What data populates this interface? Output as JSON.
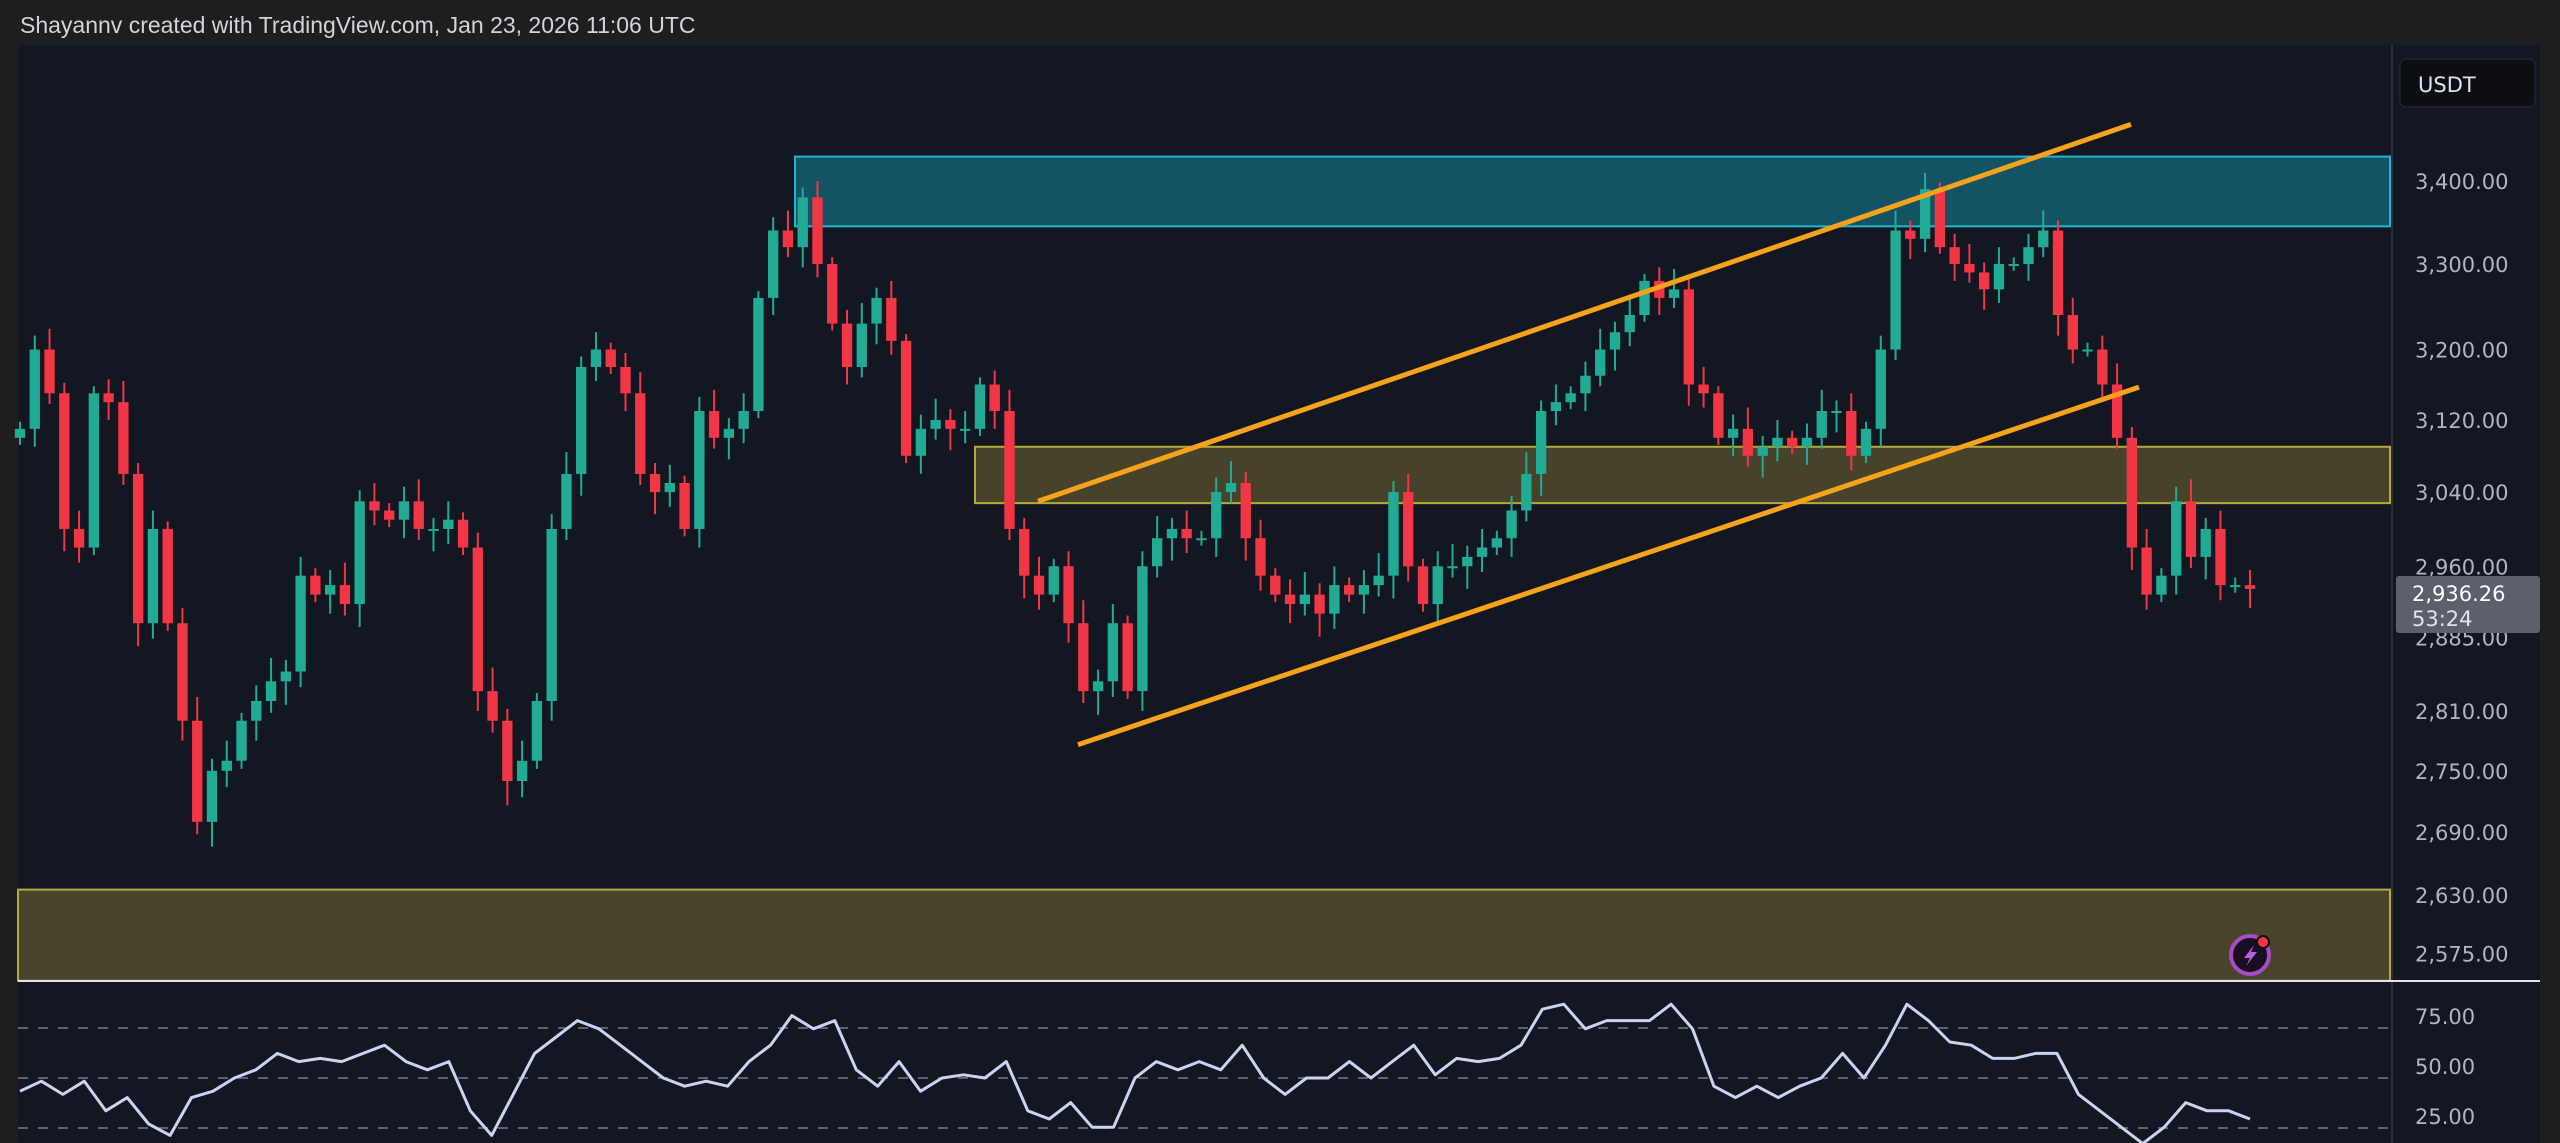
{
  "header": {
    "attribution": "Shayannv created with TradingView.com, Jan 23, 2026 11:06 UTC"
  },
  "currency_button": {
    "label": "USDT"
  },
  "last_price": {
    "value": "2,936.26",
    "countdown": "53:24",
    "color": "#5d606b"
  },
  "colors": {
    "up": "#22ab94",
    "down": "#f23645",
    "background": "#131722",
    "channel": "#f7a21b",
    "supply_zone": "#22b5d0",
    "demand_zone": "#b5a93a",
    "rsi_line": "#c8d4f0"
  },
  "chart_data": [
    {
      "type": "candlestick",
      "scale": "log",
      "ylim": [
        2550,
        3470
      ],
      "y_ticks": [
        "3,400.00",
        "3,300.00",
        "3,200.00",
        "3,120.00",
        "3,040.00",
        "2,960.00",
        "2,885.00",
        "2,810.00",
        "2,750.00",
        "2,690.00",
        "2,630.00",
        "2,575.00"
      ],
      "y_tick_values": [
        3400,
        3300,
        3200,
        3120,
        3040,
        2960,
        2885,
        2810,
        2750,
        2690,
        2630,
        2575
      ],
      "close": [
        3110,
        3200,
        3150,
        3000,
        2980,
        3150,
        3140,
        3060,
        2900,
        3000,
        2900,
        2800,
        2700,
        2750,
        2760,
        2800,
        2820,
        2840,
        2850,
        2950,
        2930,
        2940,
        2920,
        3030,
        3020,
        3010,
        3030,
        3000,
        3000,
        3010,
        2980,
        2830,
        2800,
        2740,
        2760,
        2820,
        3000,
        3060,
        3180,
        3200,
        3180,
        3150,
        3060,
        3040,
        3050,
        3000,
        3130,
        3100,
        3110,
        3130,
        3260,
        3340,
        3320,
        3380,
        3300,
        3230,
        3180,
        3230,
        3260,
        3210,
        3080,
        3110,
        3120,
        3110,
        3110,
        3160,
        3130,
        3000,
        2950,
        2930,
        2960,
        2900,
        2830,
        2840,
        2900,
        2830,
        2960,
        2990,
        3000,
        2990,
        2990,
        3040,
        3050,
        2990,
        2950,
        2930,
        2920,
        2930,
        2910,
        2940,
        2930,
        2940,
        2950,
        3040,
        2960,
        2920,
        2960,
        2960,
        2970,
        2980,
        2990,
        3020,
        3060,
        3130,
        3140,
        3150,
        3170,
        3200,
        3220,
        3240,
        3280,
        3260,
        3270,
        3160,
        3150,
        3100,
        3110,
        3080,
        3090,
        3100,
        3090,
        3100,
        3130,
        3130,
        3080,
        3110,
        3200,
        3340,
        3330,
        3390,
        3320,
        3300,
        3290,
        3270,
        3300,
        3300,
        3320,
        3340,
        3240,
        3200,
        3200,
        3160,
        3100,
        2980,
        2930,
        2950,
        3030,
        2970,
        3000,
        2940,
        2940,
        2936
      ],
      "zones": [
        {
          "name": "supply",
          "top": 3430,
          "bottom": 3345
        },
        {
          "name": "mid",
          "top": 3090,
          "bottom": 3028
        },
        {
          "name": "demand",
          "top": 2635,
          "bottom": 2550
        }
      ],
      "channel": {
        "upper": {
          "start": 3030,
          "end": 3470
        },
        "lower": {
          "start": 2776,
          "end": 3157
        }
      }
    },
    {
      "type": "line",
      "indicator": "RSI",
      "ylim": [
        22,
        100
      ],
      "y_ticks": [
        "75.00",
        "50.00",
        "25.00"
      ],
      "y_tick_values": [
        75,
        50,
        25
      ],
      "values": [
        43.4,
        48.4,
        41.8,
        48.4,
        33.6,
        40.2,
        27,
        21.3,
        40.2,
        43.4,
        50,
        54.1,
        62.3,
        58.2,
        59.8,
        58.2,
        62.3,
        66.4,
        58.2,
        54.1,
        58.2,
        33.6,
        21.3,
        41.8,
        62.3,
        70.5,
        78.7,
        74.6,
        66.4,
        58.2,
        50,
        45.9,
        48.4,
        45.9,
        58.2,
        66.4,
        81.2,
        74.6,
        78.7,
        54.1,
        45.9,
        58.2,
        43.4,
        50,
        51.6,
        50,
        58.2,
        33.6,
        29.5,
        37.7,
        25.4,
        25.4,
        50,
        58.2,
        54.1,
        58.2,
        54.1,
        66.4,
        50,
        41.8,
        50,
        50,
        58.2,
        50,
        58.2,
        66.4,
        51.6,
        59.8,
        58.2,
        59.8,
        66.4,
        84.4,
        86.9,
        74.6,
        78.7,
        78.7,
        78.7,
        86.9,
        74.6,
        45.9,
        40.2,
        45.9,
        40.2,
        45.9,
        50,
        62.3,
        50,
        66.4,
        86.9,
        78.7,
        68,
        66.4,
        59.8,
        59.8,
        62.3,
        62.3,
        41.8,
        33.6,
        25.4,
        17.2,
        25.4,
        37.7,
        33.6,
        33.6,
        29.5
      ]
    }
  ]
}
